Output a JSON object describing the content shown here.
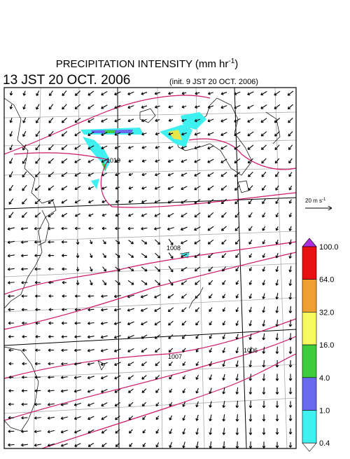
{
  "header": {
    "title": "PRECIPITATION INTENSITY (mm hr",
    "title_exponent": "-1",
    "title_end": ")",
    "valid_time": "13 JST 20 OCT. 2006",
    "init_time": "(init. 9 JST 20 OCT. 2006)"
  },
  "map": {
    "isobar_labels": [
      "1010",
      "1008",
      "1007",
      "1006"
    ]
  },
  "reference_vector": {
    "label": "20 m s",
    "exponent": "-1"
  },
  "colorbar": {
    "over_color": "#b030e0",
    "under_color": "#ffffff",
    "labels": [
      "100.0",
      "64.0",
      "32.0",
      "16.0",
      "4.0",
      "1.0",
      "0.4"
    ],
    "colors": [
      "#e81010",
      "#f0a030",
      "#f8f860",
      "#3ccc3c",
      "#6a6af0",
      "#3ff0f0"
    ]
  }
}
